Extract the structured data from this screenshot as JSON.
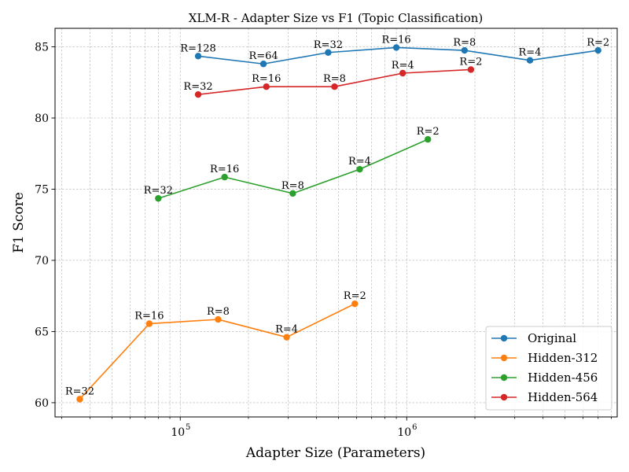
{
  "chart_data": {
    "type": "line",
    "title": "XLM-R - Adapter Size vs F1 (Topic Classification)",
    "xlabel": "Adapter Size (Parameters)",
    "ylabel": "F1 Score",
    "xscale": "log",
    "xlim": [
      28000,
      8500000
    ],
    "ylim": [
      59.0,
      86.3
    ],
    "xticks": [
      {
        "base": "10",
        "exp": "5",
        "value": 100000
      },
      {
        "base": "10",
        "exp": "6",
        "value": 1000000
      }
    ],
    "yticks": [
      60,
      65,
      70,
      75,
      80,
      85
    ],
    "grid": true,
    "legend_position": "lower-right",
    "series": [
      {
        "name": "Original",
        "color": "#1f77b4",
        "points": [
          {
            "label": "R=128",
            "x": 120000,
            "y": 84.35
          },
          {
            "label": "R=64",
            "x": 233000,
            "y": 83.8
          },
          {
            "label": "R=32",
            "x": 450000,
            "y": 84.6
          },
          {
            "label": "R=16",
            "x": 900000,
            "y": 84.95
          },
          {
            "label": "R=8",
            "x": 1800000,
            "y": 84.75
          },
          {
            "label": "R=4",
            "x": 3500000,
            "y": 84.05
          },
          {
            "label": "R=2",
            "x": 7000000,
            "y": 84.75
          }
        ]
      },
      {
        "name": "Hidden-312",
        "color": "#ff7f0e",
        "points": [
          {
            "label": "R=32",
            "x": 36000,
            "y": 60.25
          },
          {
            "label": "R=16",
            "x": 73000,
            "y": 65.55
          },
          {
            "label": "R=8",
            "x": 147000,
            "y": 65.85
          },
          {
            "label": "R=4",
            "x": 295000,
            "y": 64.6
          },
          {
            "label": "R=2",
            "x": 590000,
            "y": 66.95
          }
        ]
      },
      {
        "name": "Hidden-456",
        "color": "#2ca02c",
        "points": [
          {
            "label": "R=32",
            "x": 80000,
            "y": 74.35
          },
          {
            "label": "R=16",
            "x": 157000,
            "y": 75.85
          },
          {
            "label": "R=8",
            "x": 314000,
            "y": 74.7
          },
          {
            "label": "R=4",
            "x": 620000,
            "y": 76.4
          },
          {
            "label": "R=2",
            "x": 1240000,
            "y": 78.5
          }
        ]
      },
      {
        "name": "Hidden-564",
        "color": "#d62728",
        "points": [
          {
            "label": "R=32",
            "x": 120000,
            "y": 81.65
          },
          {
            "label": "R=16",
            "x": 240000,
            "y": 82.2
          },
          {
            "label": "R=8",
            "x": 480000,
            "y": 82.2
          },
          {
            "label": "R=4",
            "x": 960000,
            "y": 83.15
          },
          {
            "label": "R=2",
            "x": 1920000,
            "y": 83.4
          }
        ]
      }
    ]
  }
}
